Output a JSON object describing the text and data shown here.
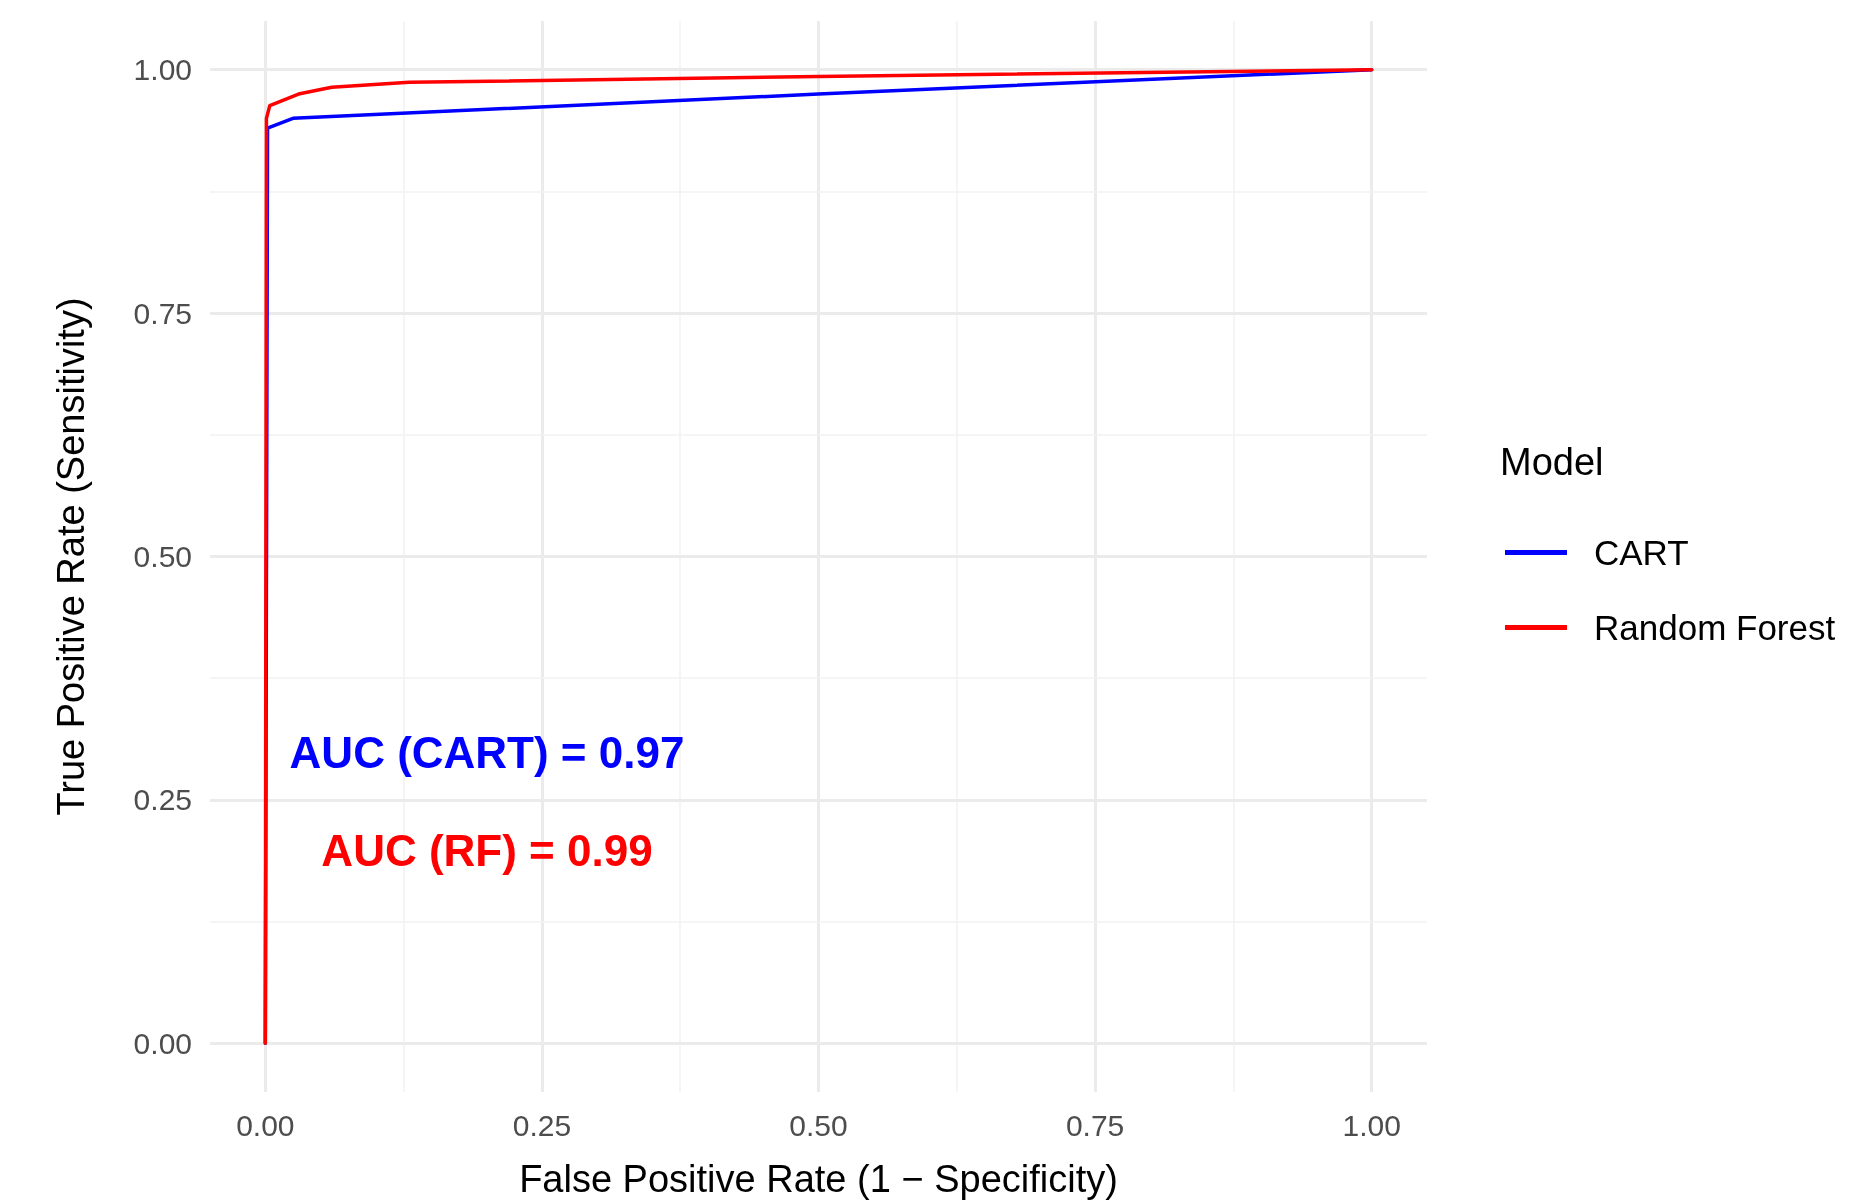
{
  "chart_data": {
    "type": "line",
    "xlabel": "False Positive Rate (1 − Specificity)",
    "ylabel": "True Positive Rate (Sensitivity)",
    "legend_title": "Model",
    "series": [
      {
        "name": "CART",
        "color": "#0000ff",
        "x": [
          0,
          0.002,
          0.025,
          0.5,
          1
        ],
        "values": [
          0,
          0.94,
          0.95,
          0.975,
          1
        ]
      },
      {
        "name": "Random Forest",
        "color": "#ff0000",
        "x": [
          0,
          0.001,
          0.004,
          0.03,
          0.06,
          0.13,
          0.5,
          1
        ],
        "values": [
          0,
          0.95,
          0.963,
          0.975,
          0.982,
          0.987,
          0.993,
          1
        ]
      }
    ],
    "annotations": [
      "AUC (CART) = 0.97",
      "AUC (RF) = 0.99"
    ],
    "xlim": [
      -0.05,
      1.05
    ],
    "ylim": [
      -0.05,
      1.05
    ],
    "xticks": [
      {
        "value": 0,
        "label": "0.00"
      },
      {
        "value": 0.125,
        "label": null
      },
      {
        "value": 0.25,
        "label": "0.25"
      },
      {
        "value": 0.375,
        "label": null
      },
      {
        "value": 0.5,
        "label": "0.50"
      },
      {
        "value": 0.625,
        "label": null
      },
      {
        "value": 0.75,
        "label": "0.75"
      },
      {
        "value": 0.875,
        "label": null
      },
      {
        "value": 1,
        "label": "1.00"
      }
    ],
    "yticks": [
      {
        "value": 0,
        "label": "0.00"
      },
      {
        "value": 0.125,
        "label": null
      },
      {
        "value": 0.25,
        "label": "0.25"
      },
      {
        "value": 0.375,
        "label": null
      },
      {
        "value": 0.5,
        "label": "0.50"
      },
      {
        "value": 0.625,
        "label": null
      },
      {
        "value": 0.75,
        "label": "0.75"
      },
      {
        "value": 0.875,
        "label": null
      },
      {
        "value": 1,
        "label": "1.00"
      }
    ],
    "grid": true,
    "legend": "right",
    "marker": "none",
    "line_style": "solid"
  }
}
